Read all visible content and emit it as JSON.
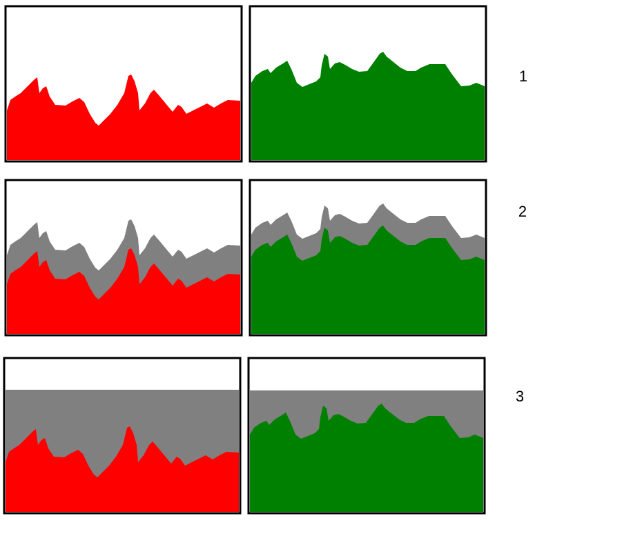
{
  "rows": [
    {
      "label": "1"
    },
    {
      "label": "2"
    },
    {
      "label": "3"
    }
  ]
}
